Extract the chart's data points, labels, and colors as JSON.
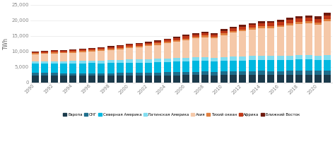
{
  "years": [
    1990,
    1991,
    1992,
    1993,
    1994,
    1995,
    1996,
    1997,
    1998,
    1999,
    2000,
    2001,
    2002,
    2003,
    2004,
    2005,
    2006,
    2007,
    2008,
    2009,
    2010,
    2011,
    2012,
    2013,
    2014,
    2015,
    2016,
    2017,
    2018,
    2019,
    2020,
    2021
  ],
  "series": {
    "Европа": [
      2100,
      2120,
      2130,
      2140,
      2150,
      2180,
      2220,
      2190,
      2200,
      2200,
      2230,
      2220,
      2220,
      2260,
      2280,
      2300,
      2310,
      2340,
      2360,
      2260,
      2340,
      2360,
      2380,
      2400,
      2400,
      2380,
      2360,
      2390,
      2420,
      2390,
      2330,
      2380
    ],
    "СНГ": [
      1050,
      980,
      900,
      840,
      790,
      780,
      760,
      770,
      780,
      800,
      830,
      840,
      870,
      910,
      940,
      980,
      1020,
      1060,
      1090,
      1060,
      1130,
      1170,
      1210,
      1250,
      1280,
      1290,
      1300,
      1340,
      1380,
      1390,
      1360,
      1400
    ],
    "Северная Америка": [
      3000,
      3020,
      3040,
      3060,
      3100,
      3150,
      3200,
      3180,
      3200,
      3260,
      3310,
      3290,
      3270,
      3310,
      3360,
      3410,
      3430,
      3460,
      3440,
      3360,
      3430,
      3470,
      3460,
      3490,
      3510,
      3490,
      3470,
      3510,
      3550,
      3530,
      3460,
      3510
    ],
    "Латинская Америка": [
      700,
      730,
      760,
      790,
      820,
      850,
      880,
      910,
      940,
      970,
      1000,
      1030,
      1050,
      1080,
      1110,
      1150,
      1180,
      1220,
      1240,
      1180,
      1240,
      1270,
      1300,
      1330,
      1350,
      1360,
      1370,
      1410,
      1440,
      1450,
      1420,
      1460
    ],
    "Азия": [
      2200,
      2350,
      2480,
      2580,
      2680,
      2800,
      2950,
      3120,
      3280,
      3430,
      3700,
      3950,
      4220,
      4520,
      4880,
      5250,
      5680,
      6100,
      6450,
      6300,
      7100,
      7700,
      8100,
      8500,
      8850,
      9000,
      9300,
      9700,
      10000,
      10200,
      10100,
      10900
    ],
    "Тихий океан": [
      350,
      358,
      366,
      374,
      382,
      390,
      398,
      407,
      416,
      425,
      435,
      445,
      455,
      465,
      478,
      492,
      506,
      521,
      530,
      515,
      545,
      560,
      575,
      592,
      602,
      614,
      622,
      640,
      652,
      660,
      645,
      670
    ],
    "Африка": [
      400,
      418,
      436,
      454,
      472,
      490,
      510,
      530,
      550,
      570,
      592,
      614,
      636,
      660,
      690,
      720,
      750,
      780,
      810,
      800,
      840,
      870,
      910,
      950,
      980,
      1010,
      1040,
      1080,
      1120,
      1150,
      1160,
      1210
    ],
    "Ближний Восток": [
      200,
      208,
      216,
      224,
      232,
      242,
      252,
      264,
      275,
      286,
      300,
      312,
      325,
      340,
      358,
      378,
      400,
      422,
      448,
      440,
      475,
      508,
      542,
      578,
      618,
      650,
      680,
      730,
      790,
      820,
      840,
      920
    ]
  },
  "colors": {
    "Европа": "#1b3a4b",
    "СНГ": "#1e6e8c",
    "Северная Америка": "#00b8e0",
    "Латинская Америка": "#80ddf0",
    "Азия": "#f5c8a8",
    "Тихий океан": "#e08040",
    "Африка": "#c03818",
    "Ближний Восток": "#6e1a0e"
  },
  "series_order": [
    "Европа",
    "СНГ",
    "Северная Америка",
    "Латинская Америка",
    "Азия",
    "Тихий океан",
    "Африка",
    "Ближний Восток"
  ],
  "ylabel": "TWh",
  "ylim": [
    0,
    25000
  ],
  "yticks": [
    0,
    5000,
    10000,
    15000,
    20000,
    25000
  ],
  "xlim": [
    1989.5,
    2021.5
  ],
  "xtick_step": 2,
  "bar_width": 0.75,
  "background_color": "#ffffff",
  "grid_color": "#e8e8e8",
  "spine_color": "#cccccc"
}
